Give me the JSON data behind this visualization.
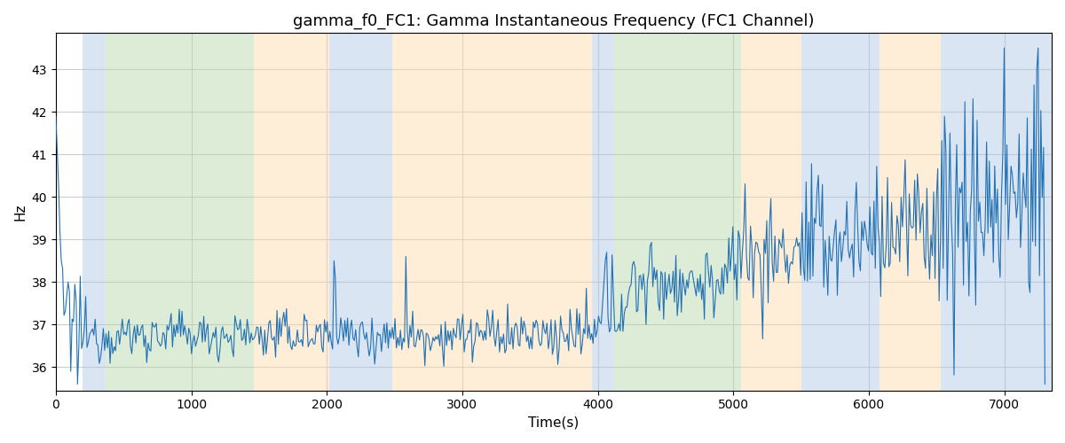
{
  "title": "gamma_f0_FC1: Gamma Instantaneous Frequency (FC1 Channel)",
  "xlabel": "Time(s)",
  "ylabel": "Hz",
  "xlim": [
    0,
    7350
  ],
  "ylim": [
    35.45,
    43.85
  ],
  "yticks": [
    36,
    37,
    38,
    39,
    40,
    41,
    42,
    43
  ],
  "line_color": "#2171b5",
  "line_width": 0.8,
  "background_color": "#ffffff",
  "grid_color": "#cccccc",
  "title_fontsize": 13,
  "axis_fontsize": 11,
  "bands": [
    {
      "xmin": 200,
      "xmax": 370,
      "color": "#adc6e8",
      "alpha": 0.45
    },
    {
      "xmin": 370,
      "xmax": 1460,
      "color": "#b5d5a8",
      "alpha": 0.45
    },
    {
      "xmin": 1460,
      "xmax": 2020,
      "color": "#fdd9a8",
      "alpha": 0.45
    },
    {
      "xmin": 2020,
      "xmax": 2480,
      "color": "#adc6e8",
      "alpha": 0.45
    },
    {
      "xmin": 2480,
      "xmax": 3960,
      "color": "#fdd9a8",
      "alpha": 0.45
    },
    {
      "xmin": 3960,
      "xmax": 4120,
      "color": "#adc6e8",
      "alpha": 0.45
    },
    {
      "xmin": 4120,
      "xmax": 5060,
      "color": "#b5d5a8",
      "alpha": 0.45
    },
    {
      "xmin": 5060,
      "xmax": 5500,
      "color": "#fdd9a8",
      "alpha": 0.45
    },
    {
      "xmin": 5500,
      "xmax": 6080,
      "color": "#adc6e8",
      "alpha": 0.45
    },
    {
      "xmin": 6080,
      "xmax": 6530,
      "color": "#fdd9a8",
      "alpha": 0.45
    },
    {
      "xmin": 6530,
      "xmax": 7350,
      "color": "#adc6e8",
      "alpha": 0.45
    }
  ],
  "seed": 12345,
  "n_points": 730
}
